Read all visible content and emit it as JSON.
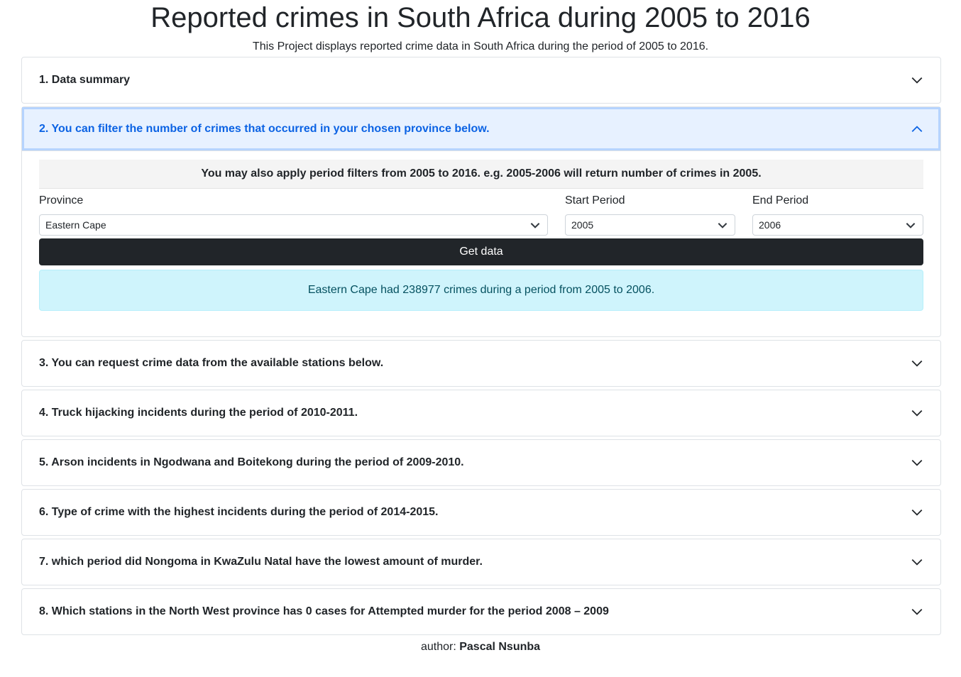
{
  "header": {
    "title": "Reported crimes in South Africa during 2005 to 2016",
    "subtitle": "This Project displays reported crime data in South Africa during the period of 2005 to 2016."
  },
  "accordion": {
    "items": [
      {
        "label": "1. Data summary",
        "expanded": false
      },
      {
        "label": "2. You can filter the number of crimes that occurred in your chosen province below.",
        "expanded": true
      },
      {
        "label": "3. You can request crime data from the available stations below.",
        "expanded": false
      },
      {
        "label": "4. Truck hijacking incidents during the period of 2010-2011.",
        "expanded": false
      },
      {
        "label": "5. Arson incidents in Ngodwana and Boitekong during the period of 2009-2010.",
        "expanded": false
      },
      {
        "label": "6. Type of crime with the highest incidents during the period of 2014-2015.",
        "expanded": false
      },
      {
        "label": "7. which period did Nongoma in KwaZulu Natal have the lowest amount of murder.",
        "expanded": false
      },
      {
        "label": "8. Which stations in the North West province has 0 cases for Attempted murder for the period 2008 – 2009",
        "expanded": false
      }
    ]
  },
  "filter": {
    "notice": "You may also apply period filters from 2005 to 2016. e.g. 2005-2006 will return number of crimes in 2005.",
    "province_label": "Province",
    "province_value": "Eastern Cape",
    "start_label": "Start Period",
    "start_value": "2005",
    "end_label": "End Period",
    "end_value": "2006",
    "button_label": "Get data",
    "result": "Eastern Cape had 238977 crimes during a period from 2005 to 2006."
  },
  "footer": {
    "prefix": "author:",
    "author": "Pascal Nsunba"
  },
  "icons": {
    "chevron_down": "chevron-down-icon",
    "chevron_up": "chevron-up-icon"
  },
  "colors": {
    "active_header_bg": "#e7f1ff",
    "active_header_text": "#0c63e4",
    "button_bg": "#212529",
    "alert_bg": "#cff4fc",
    "alert_text": "#055160"
  }
}
